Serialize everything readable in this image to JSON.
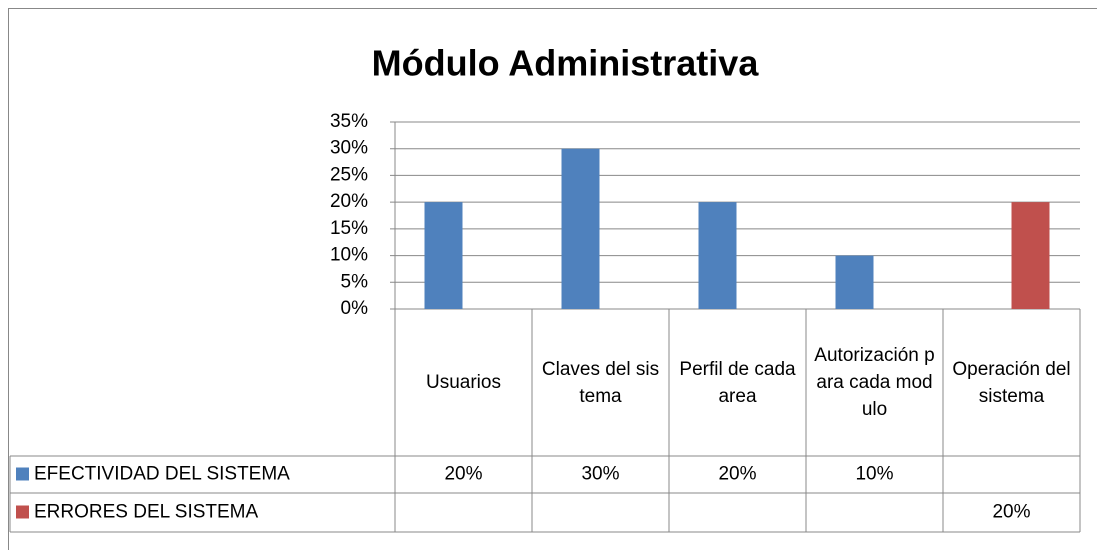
{
  "chart_data": {
    "type": "bar",
    "title": "Módulo   Administrativa",
    "categories": [
      "Usuarios",
      "Claves del sistema",
      "Perfil de cada area",
      "Autorización para cada modulo",
      "Operación del sistema"
    ],
    "series": [
      {
        "name": "EFECTIVIDAD DEL  SISTEMA",
        "color": "#4f81bd",
        "values": [
          20,
          30,
          20,
          10,
          null
        ],
        "value_labels": [
          "20%",
          "30%",
          "20%",
          "10%",
          null
        ]
      },
      {
        "name": "ERRORES DEL SISTEMA",
        "color": "#c0504d",
        "values": [
          null,
          null,
          null,
          null,
          20
        ],
        "value_labels": [
          null,
          null,
          null,
          null,
          "20%"
        ]
      }
    ],
    "ylim": [
      0,
      35
    ],
    "yticks": [
      {
        "value": 0,
        "label": "0%"
      },
      {
        "value": 5,
        "label": "5%"
      },
      {
        "value": 10,
        "label": "10%"
      },
      {
        "value": 15,
        "label": "15%"
      },
      {
        "value": 20,
        "label": "20%"
      },
      {
        "value": 25,
        "label": "25%"
      },
      {
        "value": 30,
        "label": "30%"
      },
      {
        "value": 35,
        "label": "35%"
      }
    ],
    "grid": true
  }
}
